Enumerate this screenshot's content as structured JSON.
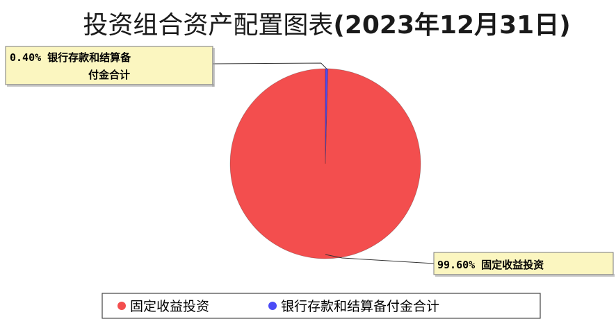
{
  "chart_data": {
    "type": "pie",
    "title_prefix": "投资组合资产配置图表",
    "title_suffix": "(2023年12月31日)",
    "slices": [
      {
        "name": "固定收益投资",
        "percent": 99.6,
        "label_pct": "99.60%",
        "color": "#f34e4e"
      },
      {
        "name": "银行存款和结算备付金合计",
        "percent": 0.4,
        "label_pct": "0.40%",
        "color": "#4b4bf6"
      }
    ],
    "callouts": [
      {
        "lines": [
          "0.40% 银行存款和结算备",
          "付金合计"
        ]
      },
      {
        "lines": [
          "99.60% 固定收益投资"
        ]
      }
    ],
    "legend_position": "bottom",
    "callout_bg": "#fbf6c0"
  }
}
